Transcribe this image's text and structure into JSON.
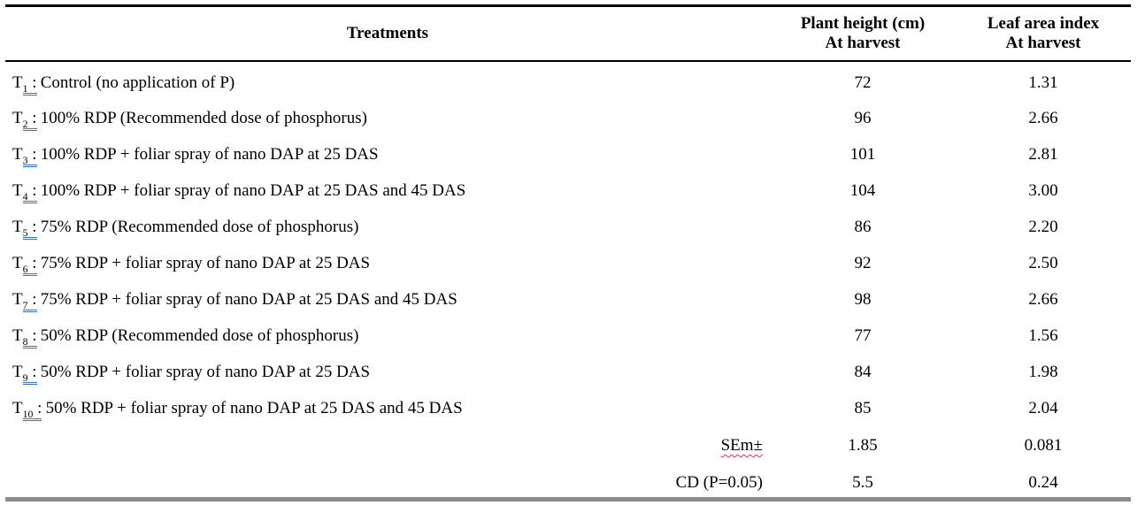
{
  "table": {
    "header": {
      "treatments": "Treatments",
      "plant_height_line1": "Plant height (cm)",
      "plant_height_line2": "At harvest",
      "leaf_area_line1": "Leaf area index",
      "leaf_area_line2": "At harvest"
    },
    "subscript_underline_style": "blue-double",
    "rows": [
      {
        "code": "T",
        "sub": "1",
        "sep": " :",
        "desc": "Control (no application of P)",
        "plant_height": "72",
        "leaf_area_index": "1.31"
      },
      {
        "code": "T",
        "sub": "2",
        "sep": " :",
        "desc": "100% RDP (Recommended dose of phosphorus)",
        "plant_height": "96",
        "leaf_area_index": "2.66"
      },
      {
        "code": "T",
        "sub": "3",
        "sep": " :",
        "desc": "100% RDP + foliar spray of nano DAP at 25 DAS",
        "plant_height": "101",
        "leaf_area_index": "2.81"
      },
      {
        "code": "T",
        "sub": "4",
        "sep": " :",
        "desc": "100% RDP + foliar spray of nano DAP at 25 DAS and 45 DAS",
        "plant_height": "104",
        "leaf_area_index": "3.00"
      },
      {
        "code": "T",
        "sub": "5",
        "sep": " :",
        "desc": "75% RDP (Recommended dose of phosphorus)",
        "plant_height": "86",
        "leaf_area_index": "2.20"
      },
      {
        "code": "T",
        "sub": "6",
        "sep": " :",
        "desc": "75% RDP + foliar spray of nano DAP at 25 DAS",
        "plant_height": "92",
        "leaf_area_index": "2.50"
      },
      {
        "code": "T",
        "sub": "7",
        "sep": " :",
        "desc": "75% RDP + foliar spray of nano DAP at 25 DAS and 45 DAS",
        "plant_height": "98",
        "leaf_area_index": "2.66"
      },
      {
        "code": "T",
        "sub": "8",
        "sep": " :",
        "desc": "50% RDP (Recommended dose of phosphorus)",
        "plant_height": "77",
        "leaf_area_index": "1.56"
      },
      {
        "code": "T",
        "sub": "9",
        "sep": " :",
        "desc": "50% RDP + foliar spray of nano DAP at 25 DAS",
        "plant_height": "84",
        "leaf_area_index": "1.98"
      },
      {
        "code": "T",
        "sub": "10",
        "sep": " :",
        "desc": "50% RDP + foliar spray of nano DAP at 25 DAS and 45 DAS",
        "plant_height": "85",
        "leaf_area_index": "2.04"
      }
    ],
    "footer_rows": [
      {
        "label": "SEm±",
        "plant_height": "1.85",
        "leaf_area_index": "0.081",
        "spellcheck": "red-wavy"
      },
      {
        "label": "CD (P=0.05)",
        "plant_height": "5.5",
        "leaf_area_index": "0.24",
        "spellcheck": "none"
      }
    ]
  },
  "colors": {
    "text": "#000000",
    "rule_black": "#000000",
    "bottom_rule_gray": "#8C8C8C",
    "grammar_underline_blue": "#4472C4",
    "spellcheck_red": "#E03A2F"
  }
}
